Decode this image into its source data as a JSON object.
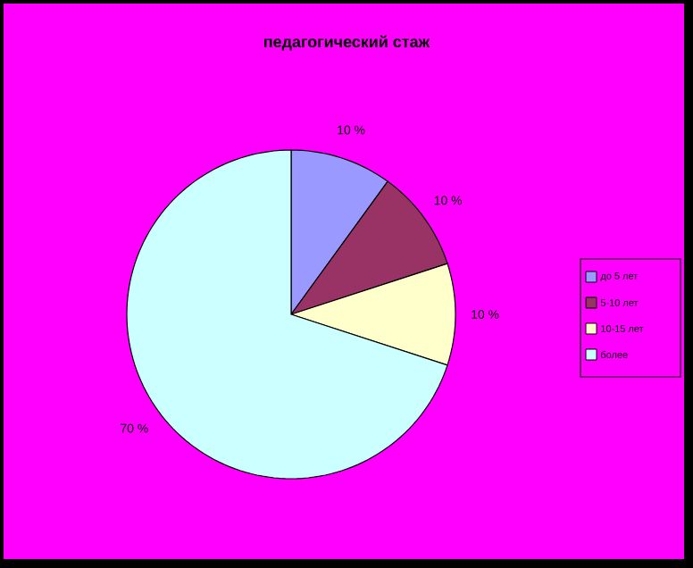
{
  "chart_data": {
    "type": "pie",
    "title": "педагогический стаж",
    "categories": [
      "до 5 лет",
      "5-10 лет",
      "10-15 лет",
      "более"
    ],
    "values": [
      10,
      10,
      10,
      70
    ],
    "colors": [
      "#9999ff",
      "#993366",
      "#ffffcc",
      "#ccffff"
    ],
    "value_labels": [
      "10 %",
      "10 %",
      "10 %",
      "70 %"
    ],
    "legend": "right"
  }
}
